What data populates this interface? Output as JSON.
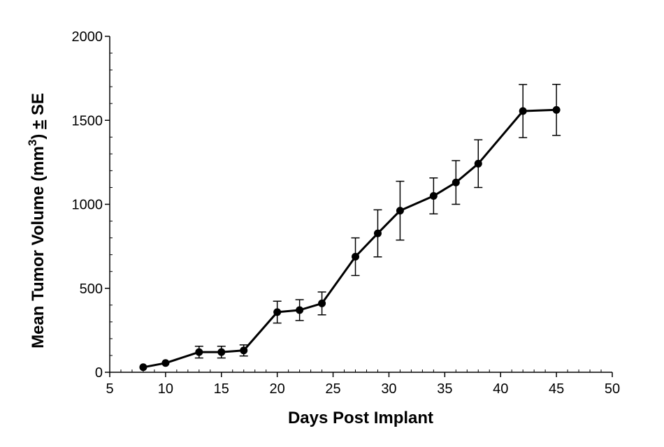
{
  "chart_data": {
    "type": "line",
    "title": "",
    "xlabel": "Days Post Implant",
    "ylabel": {
      "prefix": "Mean Tumor Volume (mm",
      "superscript": "3",
      "suffix": ") ",
      "pm": "±",
      "tail": " SE"
    },
    "xlim": [
      5,
      50
    ],
    "ylim": [
      0,
      2000
    ],
    "x_ticks": [
      5,
      10,
      15,
      20,
      25,
      30,
      35,
      40,
      45,
      50
    ],
    "y_ticks": [
      0,
      500,
      1000,
      1500,
      2000
    ],
    "x_minor_step": 1,
    "y_minor_step": 100,
    "grid": false,
    "legend": "none",
    "series_color": "#000000",
    "series": [
      {
        "x": [
          8,
          10,
          13,
          15,
          17,
          20,
          22,
          24,
          27,
          29,
          31,
          34,
          36,
          38,
          42,
          45
        ],
        "y": [
          30,
          55,
          120,
          120,
          130,
          358,
          370,
          410,
          688,
          827,
          962,
          1050,
          1130,
          1242,
          1555,
          1562
        ],
        "err": [
          0,
          0,
          35,
          35,
          33,
          65,
          62,
          68,
          112,
          140,
          175,
          107,
          130,
          142,
          158,
          152
        ]
      }
    ]
  }
}
